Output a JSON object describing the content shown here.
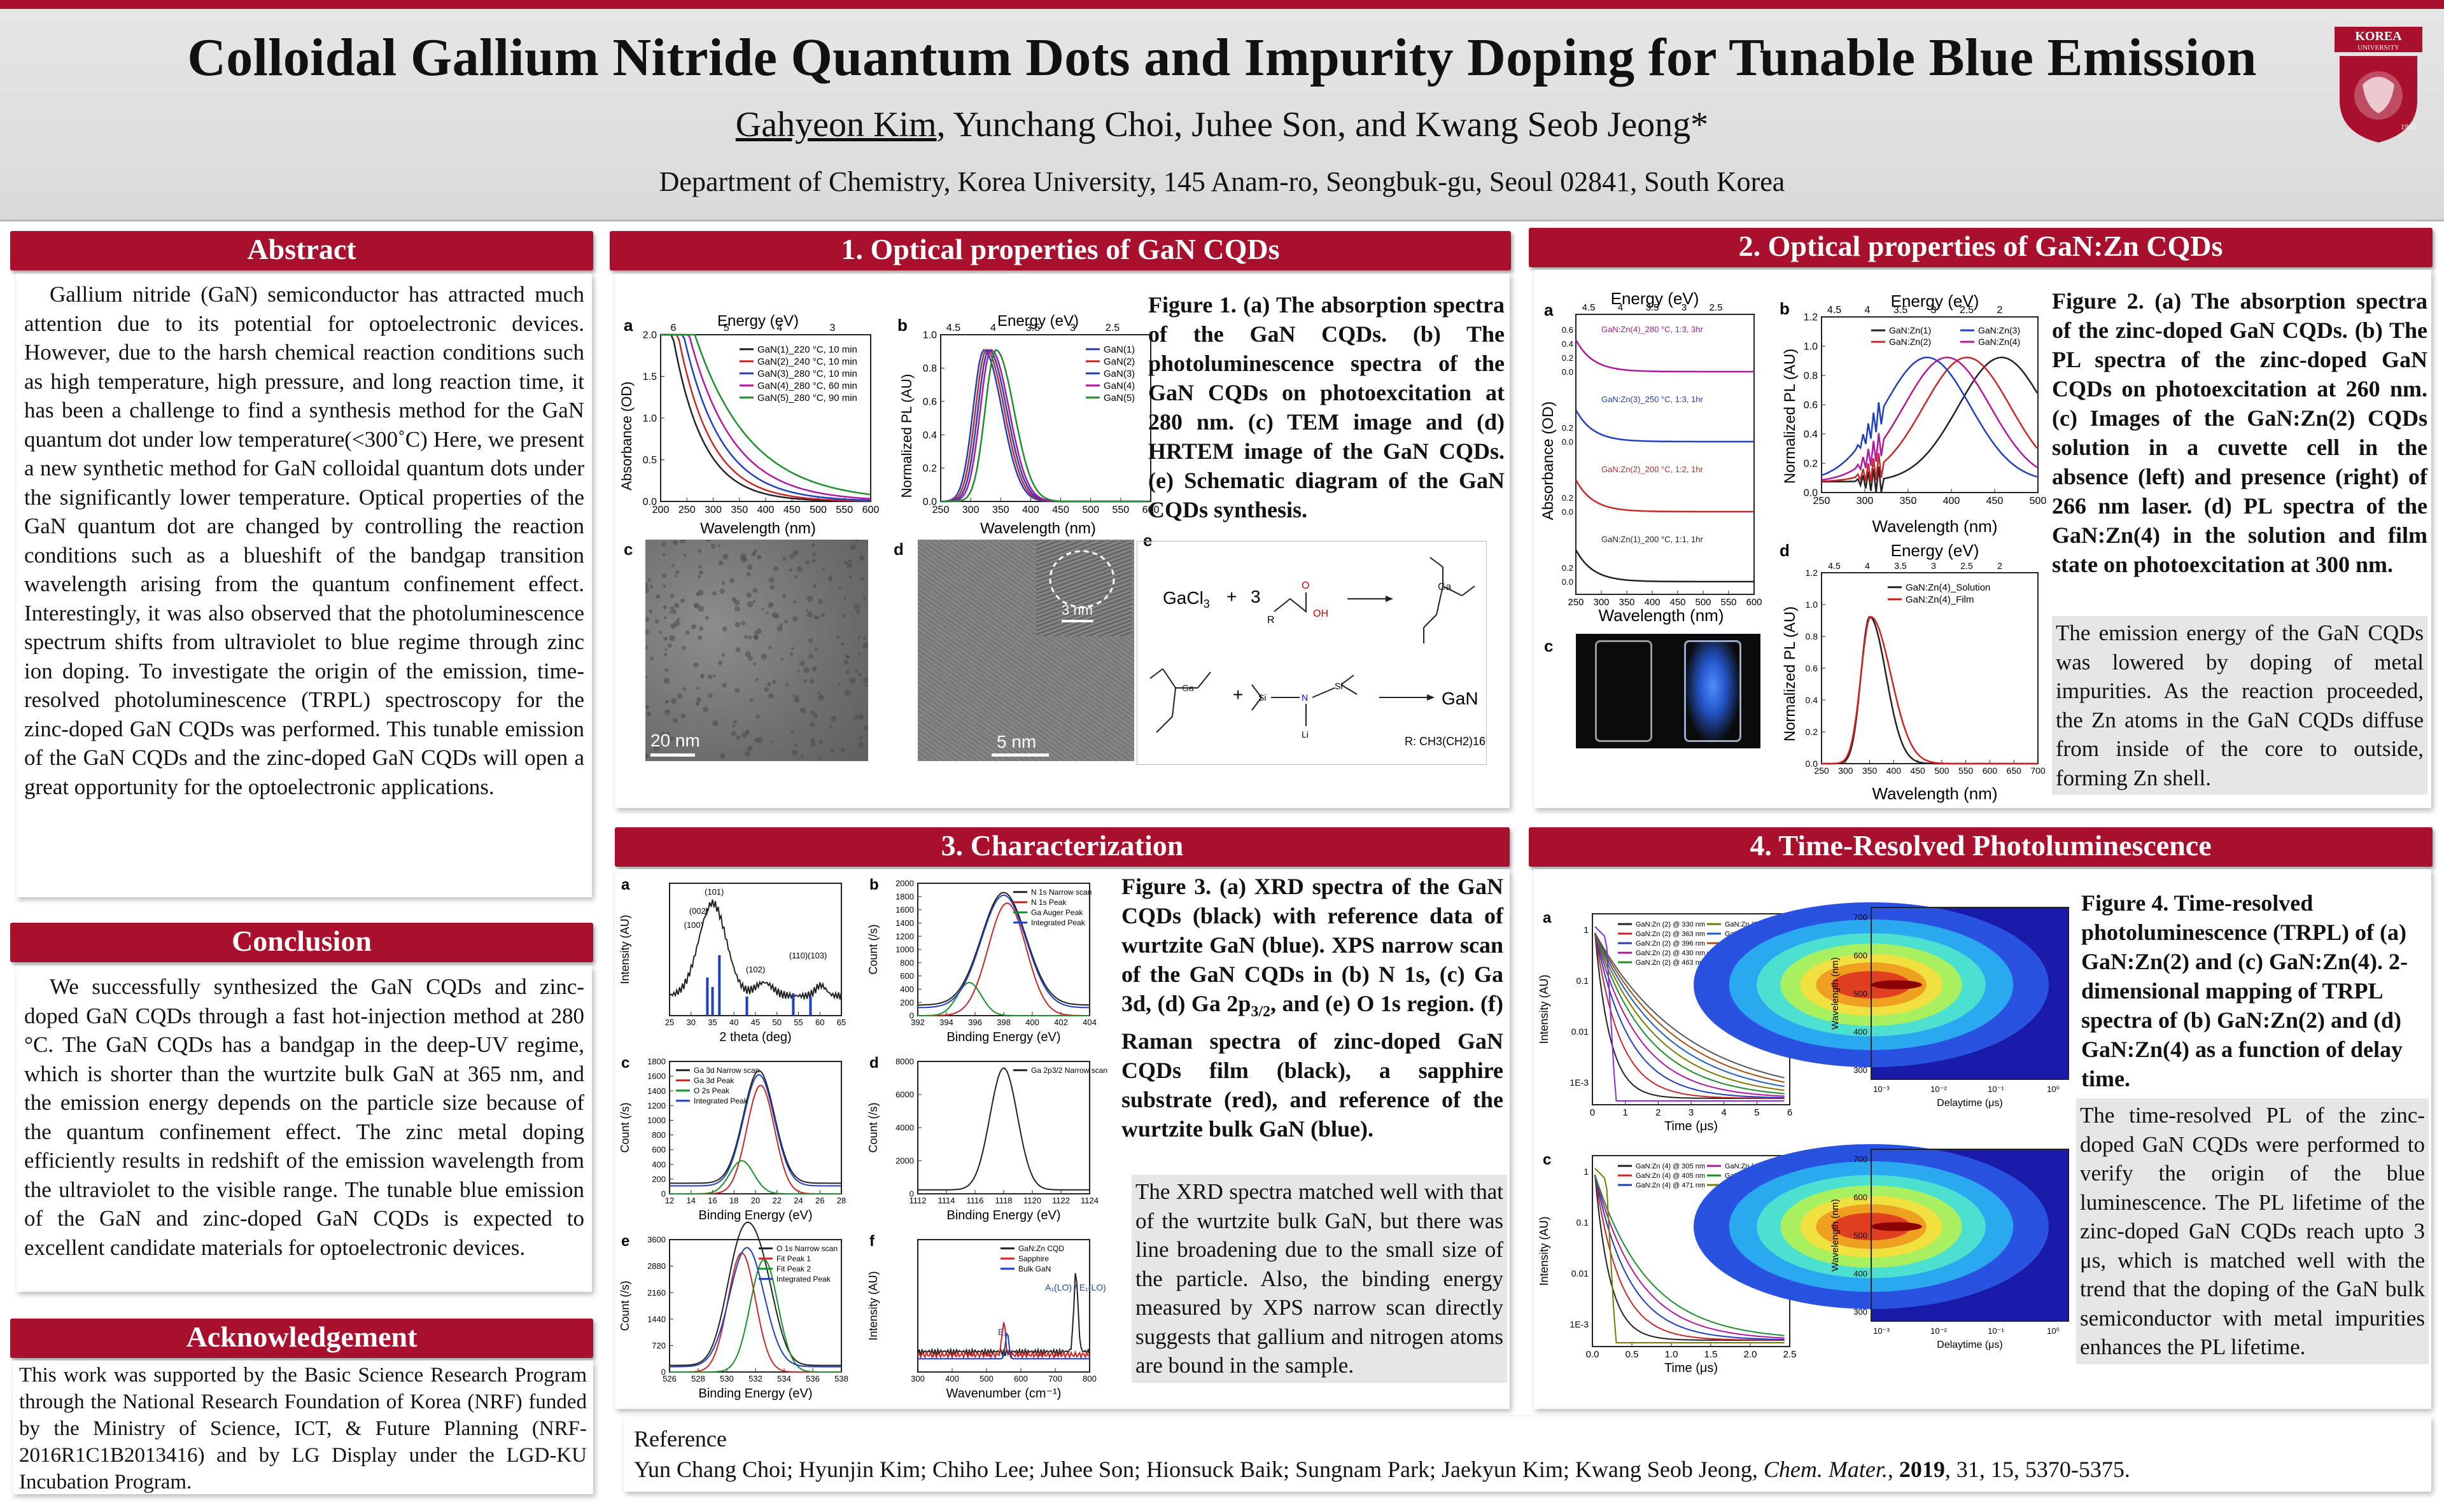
{
  "header": {
    "title": "Colloidal Gallium Nitride Quantum Dots and Impurity Doping for Tunable Blue Emission",
    "author_underlined": "Gahyeon Kim",
    "authors_rest": ", Yunchang Choi, Juhee Son, and Kwang Seob Jeong*",
    "affiliation": "Department of Chemistry, Korea University, 145 Anam-ro, Seongbuk-gu, Seoul 02841, South Korea",
    "logo_text_1": "KOREA",
    "logo_text_2": "UNIVERSITY",
    "logo_year": "1905"
  },
  "abstract": {
    "heading": "Abstract",
    "text": "Gallium nitride (GaN) semiconductor has attracted much attention due to its potential for optoelectronic devices. However, due to the harsh chemical reaction conditions such as high temperature, high pressure, and long reaction time, it has been a challenge to find a synthesis method for the GaN quantum dot under low temperature(<300˚C) Here, we present a new synthetic method for GaN colloidal quantum dots under the significantly lower temperature. Optical properties of the GaN quantum dot are changed by controlling the reaction conditions such as a blueshift of the bandgap transition wavelength arising from the quantum confinement effect. Interestingly, it was also observed that the photoluminescence spectrum shifts from ultraviolet to blue regime through zinc ion doping. To investigate the origin of the emission, time-resolved photoluminescence (TRPL) spectroscopy for the zinc-doped GaN CQDs was performed. This tunable emission of the GaN CQDs and the zinc-doped GaN CQDs will open a great opportunity for the optoelectronic applications."
  },
  "conclusion": {
    "heading": "Conclusion",
    "text": "We successfully synthesized the GaN CQDs and zinc-doped GaN CQDs through a fast hot-injection method at 280 °C. The GaN CQDs has a bandgap in the deep-UV regime, which is shorter than the wurtzite bulk GaN at 365 nm, and the emission energy depends on the particle size because of the quantum confinement effect. The zinc metal doping efficiently results in redshift of the emission wavelength from the ultraviolet to the visible range. The tunable blue emission of the GaN and zinc-doped GaN CQDs is expected to excellent candidate materials for optoelectronic devices."
  },
  "acknowledgement": {
    "heading": "Acknowledgement",
    "text": "This work was supported by the Basic Science Research Program through the National Research Foundation of Korea (NRF) funded by the Ministry of Science, ICT, & Future Planning (NRF-2016R1C1B2013416) and by LG Display under the LGD-KU Incubation Program."
  },
  "section1": {
    "heading": "1. Optical properties of GaN CQDs",
    "caption": "Figure 1. (a) The absorption spectra of the GaN CQDs. (b) The photoluminescence spectra of the GaN CQDs on photoexcitation at 280 nm. (c) TEM image and (d) HRTEM image of the GaN CQDs. (e) Schematic diagram of the GaN CQDs synthesis.",
    "panel_a": {
      "label": "a",
      "top_axis": "Energy (eV)",
      "xlabel": "Wavelength (nm)",
      "ylabel": "Absorbance (OD)",
      "legend": [
        "GaN(1)_220 °C, 10 min",
        "GaN(2)_240 °C, 10 min",
        "GaN(3)_280 °C, 10 min",
        "GaN(4)_280 °C, 60 min",
        "GaN(5)_280 °C, 90 min"
      ],
      "xticks": [
        "200",
        "250",
        "300",
        "350",
        "400",
        "450",
        "500",
        "550",
        "600"
      ],
      "yticks": [
        "0.0",
        "0.5",
        "1.0",
        "1.5",
        "2.0"
      ],
      "top_ticks": [
        "6",
        "5",
        "4",
        "3"
      ]
    },
    "panel_b": {
      "label": "b",
      "top_axis": "Energy (eV)",
      "xlabel": "Wavelength (nm)",
      "ylabel": "Normalized PL (AU)",
      "legend": [
        "GaN(1)",
        "GaN(2)",
        "GaN(3)",
        "GaN(4)",
        "GaN(5)"
      ],
      "xticks": [
        "250",
        "300",
        "350",
        "400",
        "450",
        "500",
        "550",
        "600"
      ],
      "yticks": [
        "0.0",
        "0.2",
        "0.4",
        "0.6",
        "0.8",
        "1.0"
      ],
      "top_ticks": [
        "4.5",
        "4",
        "3.5",
        "3",
        "2.5"
      ]
    },
    "panel_c": {
      "label": "c",
      "scale": "20 nm"
    },
    "panel_d": {
      "label": "d",
      "scale": "5 nm",
      "inset_scale": "3 nm"
    },
    "panel_e": {
      "label": "e",
      "reagent1": "GaCl",
      "reagent1_sub": "3",
      "plus": "+",
      "coef": "3",
      "product": "GaN",
      "r_group": "R: CH3(CH2)16",
      "chain_label_1": "R",
      "si_label": "Si",
      "li_label": "Li"
    }
  },
  "section2": {
    "heading": "2. Optical properties of GaN:Zn CQDs",
    "caption": "Figure 2. (a) The absorption spectra of the zinc-doped GaN CQDs. (b) The PL spectra of the zinc-doped GaN CQDs on photoexcitation at 260 nm. (c) Images of the GaN:Zn(2) CQDs solution in a cuvette cell in the absence (left) and presence (right) of 266 nm laser. (d) PL spectra of the GaN:Zn(4) in the solution and film state on photoexcitation at 300 nm.",
    "note": "The emission energy of the GaN CQDs was lowered by doping of metal impurities. As the reaction proceeded, the Zn atoms in the GaN CQDs diffuse from inside of the core to outside, forming Zn shell.",
    "panel_a": {
      "label": "a",
      "top_axis": "Energy (eV)",
      "xlabel": "Wavelength (nm)",
      "ylabel": "Absorbance (OD)",
      "traces": [
        "GaN:Zn(4)_280 °C, 1:3, 3hr",
        "GaN:Zn(3)_250 °C, 1:3, 1hr",
        "GaN:Zn(2)_200 °C, 1:2, 1hr",
        "GaN:Zn(1)_200 °C, 1:1, 1hr"
      ],
      "xticks": [
        "250",
        "300",
        "350",
        "400",
        "450",
        "500",
        "550",
        "600"
      ],
      "top_ticks": [
        "4.5",
        "4",
        "3.5",
        "3",
        "2.5"
      ]
    },
    "panel_b": {
      "label": "b",
      "top_axis": "Energy (eV)",
      "xlabel": "Wavelength (nm)",
      "ylabel": "Normalized PL (AU)",
      "legend": [
        "GaN:Zn(1)",
        "GaN:Zn(2)",
        "GaN:Zn(3)",
        "GaN:Zn(4)"
      ],
      "xticks": [
        "250",
        "300",
        "350",
        "400",
        "450",
        "500"
      ],
      "yticks": [
        "0.0",
        "0.2",
        "0.4",
        "0.6",
        "0.8",
        "1.0",
        "1.2"
      ],
      "top_ticks": [
        "4.5",
        "4",
        "3.5",
        "3",
        "2.5",
        "2"
      ]
    },
    "panel_c": {
      "label": "c"
    },
    "panel_d": {
      "label": "d",
      "top_axis": "Energy (eV)",
      "xlabel": "Wavelength (nm)",
      "ylabel": "Normalized PL (AU)",
      "legend": [
        "GaN:Zn(4)_Solution",
        "GaN:Zn(4)_Film"
      ],
      "xticks": [
        "250",
        "300",
        "350",
        "400",
        "450",
        "500",
        "550",
        "600",
        "650",
        "700"
      ],
      "yticks": [
        "0.0",
        "0.2",
        "0.4",
        "0.6",
        "0.8",
        "1.0",
        "1.2"
      ],
      "top_ticks": [
        "4.5",
        "4",
        "3.5",
        "3",
        "2.5",
        "2"
      ]
    }
  },
  "section3": {
    "heading": "3. Characterization",
    "caption_parts": [
      "Figure 3. (a) XRD spectra of the GaN CQDs (black) with reference data of wurtzite GaN (blue). XPS narrow scan of the GaN CQDs in (b) N 1s, (c) Ga 3d, (d) Ga 2p",
      "3/2",
      ", and (e) O 1s region. (f) Raman spectra of zinc-doped GaN CQDs film (black), a sapphire substrate (red), and reference of the wurtzite bulk GaN (blue)."
    ],
    "note": "The XRD spectra matched well with that of the wurtzite bulk GaN, but there was line broadening due to the small size of the particle. Also, the binding energy measured by XPS narrow scan directly suggests that gallium and nitrogen atoms are bound in the sample.",
    "panel_a": {
      "label": "a",
      "xlabel": "2 theta (deg)",
      "ylabel": "Intensity (AU)",
      "peaks": [
        "(101)",
        "(002)",
        "(100)",
        "(102)",
        "(110)",
        "(103)"
      ],
      "xticks": [
        "25",
        "30",
        "35",
        "40",
        "45",
        "50",
        "55",
        "60",
        "65"
      ]
    },
    "panel_b": {
      "label": "b",
      "xlabel": "Binding Energy (eV)",
      "ylabel": "Count (/s)",
      "legend": [
        "N 1s Narrow scan",
        "N 1s Peak",
        "Ga Auger Peak",
        "Integrated Peak"
      ],
      "xticks": [
        "392",
        "394",
        "396",
        "398",
        "400",
        "402",
        "404"
      ],
      "yticks": [
        "0",
        "200",
        "400",
        "600",
        "800",
        "1000",
        "1200",
        "1400",
        "1600",
        "1800",
        "2000"
      ]
    },
    "panel_c": {
      "label": "c",
      "xlabel": "Binding Energy (eV)",
      "ylabel": "Count (/s)",
      "legend": [
        "Ga 3d Narrow scan",
        "Ga 3d Peak",
        "O 2s Peak",
        "Integrated Peak"
      ],
      "xticks": [
        "12",
        "14",
        "16",
        "18",
        "20",
        "22",
        "24",
        "26",
        "28"
      ],
      "yticks": [
        "0",
        "200",
        "400",
        "600",
        "800",
        "1000",
        "1200",
        "1400",
        "1600",
        "1800"
      ]
    },
    "panel_d": {
      "label": "d",
      "xlabel": "Binding Energy (eV)",
      "ylabel": "Count (/s)",
      "legend": [
        "Ga 2p3/2 Narrow scan"
      ],
      "xticks": [
        "1112",
        "1114",
        "1116",
        "1118",
        "1120",
        "1122",
        "1124"
      ],
      "yticks": [
        "0",
        "2000",
        "4000",
        "6000",
        "8000"
      ]
    },
    "panel_e": {
      "label": "e",
      "xlabel": "Binding Energy (eV)",
      "ylabel": "Count (/s)",
      "legend": [
        "O 1s Narrow scan",
        "Fit Peak 1",
        "Fit Peak 2",
        "Integrated Peak"
      ],
      "xticks": [
        "526",
        "528",
        "530",
        "532",
        "534",
        "536",
        "538"
      ],
      "yticks": [
        "0",
        "720",
        "1440",
        "2160",
        "2880",
        "3600"
      ]
    },
    "panel_f": {
      "label": "f",
      "xlabel": "Wavenumber (cm⁻¹)",
      "ylabel": "Intensity (AU)",
      "legend": [
        "GaN:Zn CQD",
        "Sapphire",
        "Bulk GaN"
      ],
      "annot1": "A₁(LO) / E₁(LO)",
      "annot2": "E₂",
      "xticks": [
        "300",
        "400",
        "500",
        "600",
        "700",
        "800"
      ]
    }
  },
  "section4": {
    "heading": "4. Time-Resolved Photoluminescence",
    "caption": "Figure 4. Time-resolved photoluminescence (TRPL) of (a) GaN:Zn(2) and (c) GaN:Zn(4). 2-dimensional mapping of TRPL spectra of (b) GaN:Zn(2) and (d) GaN:Zn(4) as a function of delay time.",
    "note": "The time-resolved PL of the zinc-doped GaN CQDs were performed to verify the origin of the blue luminescence. The PL lifetime of the zinc-doped GaN CQDs reach upto 3 μs, which is matched well with the trend that the doping of the GaN bulk semiconductor with metal impurities enhances the PL lifetime.",
    "panel_a": {
      "label": "a",
      "xlabel": "Time (μs)",
      "ylabel": "Intensity (AU)",
      "legend": [
        "GaN:Zn (2) @ 330 nm",
        "GaN:Zn (2) @ 363 nm",
        "GaN:Zn (2) @ 396 nm",
        "GaN:Zn (2) @ 430 nm",
        "GaN:Zn (2) @ 463 nm",
        "GaN:Zn (2) @ 496 nm",
        "GaN:Zn (2) @ 563 nm",
        "GaN:Zn (2) @ 597 nm",
        "GaN:Zn (2) @ 630 nm",
        "IRF"
      ],
      "xticks": [
        "0",
        "1",
        "2",
        "3",
        "4",
        "5",
        "6"
      ],
      "yticks": [
        "1",
        "0.1",
        "0.01",
        "1E-3"
      ]
    },
    "panel_b": {
      "label": "b",
      "xlabel": "Delaytime (μs)",
      "ylabel": "Wavelength (nm)",
      "xticks": [
        "10⁻³",
        "10⁻²",
        "10⁻¹",
        "10⁰"
      ],
      "yticks": [
        "700",
        "600",
        "500",
        "400",
        "300"
      ]
    },
    "panel_c": {
      "label": "c",
      "xlabel": "Time (μs)",
      "ylabel": "Intensity (AU)",
      "legend": [
        "GaN:Zn (4) @ 305 nm",
        "GaN:Zn (4) @ 405 nm",
        "GaN:Zn (4) @ 471 nm",
        "GaN:Zn (4) @ 513 nm",
        "GaN:Zn (4) @ 605 nm",
        "IRF"
      ],
      "xticks": [
        "0.0",
        "0.5",
        "1.0",
        "1.5",
        "2.0",
        "2.5"
      ],
      "yticks": [
        "1",
        "0.1",
        "0.01",
        "1E-3"
      ]
    },
    "panel_d": {
      "label": "d",
      "xlabel": "Delaytime (μs)",
      "ylabel": "Wavelength (nm)",
      "xticks": [
        "10⁻³",
        "10⁻²",
        "10⁻¹",
        "10⁰"
      ],
      "yticks": [
        "700",
        "600",
        "500",
        "400",
        "300"
      ]
    }
  },
  "reference": {
    "heading": "Reference",
    "authors": "Yun Chang Choi; Hyunjin Kim; Chiho Lee; Juhee Son; Hionsuck Baik; Sungnam Park; Jaekyun Kim; Kwang Seob Jeong, ",
    "journal": "Chem. Mater.",
    "comma": ", ",
    "year": "2019",
    "rest": ", 31, 15, 5370-5375."
  },
  "colors": {
    "accent": "#a8102e",
    "note_bg": "#e6e6e6",
    "header_bg": "#dcdcdc"
  },
  "chart_data": [
    {
      "type": "line",
      "panel": "1a",
      "x": [
        200,
        250,
        300,
        350,
        400,
        450,
        500,
        550,
        600
      ],
      "series": [
        {
          "name": "GaN(1)_220 °C, 10 min",
          "values": [
            2.0,
            1.2,
            0.45,
            0.15,
            0.05,
            0.02,
            0.01,
            0.0,
            0.0
          ]
        },
        {
          "name": "GaN(2)_240 °C, 10 min",
          "values": [
            2.0,
            1.4,
            0.6,
            0.2,
            0.07,
            0.03,
            0.01,
            0.0,
            0.0
          ]
        },
        {
          "name": "GaN(3)_280 °C, 10 min",
          "values": [
            2.0,
            1.6,
            0.8,
            0.3,
            0.1,
            0.04,
            0.02,
            0.01,
            0.0
          ]
        },
        {
          "name": "GaN(4)_280 °C, 60 min",
          "values": [
            2.0,
            1.9,
            1.1,
            0.5,
            0.2,
            0.08,
            0.03,
            0.01,
            0.0
          ]
        },
        {
          "name": "GaN(5)_280 °C, 90 min",
          "values": [
            2.0,
            2.0,
            1.5,
            0.8,
            0.4,
            0.15,
            0.06,
            0.02,
            0.01
          ]
        }
      ],
      "xlabel": "Wavelength (nm)",
      "ylabel": "Absorbance (OD)",
      "ylim": [
        0,
        2.0
      ]
    },
    {
      "type": "line",
      "panel": "1b",
      "x": [
        250,
        275,
        300,
        325,
        350,
        375,
        400,
        450,
        500,
        550,
        600
      ],
      "series": [
        {
          "name": "GaN(1)",
          "values": [
            0.0,
            0.05,
            0.6,
            1.0,
            0.8,
            0.4,
            0.15,
            0.03,
            0.0,
            0.0,
            0.0
          ]
        },
        {
          "name": "GaN(2)",
          "values": [
            0.0,
            0.04,
            0.55,
            1.0,
            0.85,
            0.45,
            0.18,
            0.04,
            0.0,
            0.0,
            0.0
          ]
        },
        {
          "name": "GaN(3)",
          "values": [
            0.0,
            0.03,
            0.5,
            0.98,
            0.88,
            0.5,
            0.2,
            0.04,
            0.0,
            0.0,
            0.0
          ]
        },
        {
          "name": "GaN(4)",
          "values": [
            0.0,
            0.03,
            0.45,
            0.95,
            0.95,
            0.55,
            0.22,
            0.05,
            0.01,
            0.0,
            0.0
          ]
        },
        {
          "name": "GaN(5)",
          "values": [
            0.0,
            0.02,
            0.35,
            0.85,
            1.0,
            0.65,
            0.3,
            0.07,
            0.01,
            0.0,
            0.0
          ]
        }
      ],
      "xlabel": "Wavelength (nm)",
      "ylabel": "Normalized PL (AU)",
      "ylim": [
        0,
        1.1
      ]
    },
    {
      "type": "line",
      "panel": "2b",
      "x": [
        250,
        300,
        350,
        400,
        450,
        500
      ],
      "series": [
        {
          "name": "GaN:Zn(1)",
          "values": [
            0.0,
            0.2,
            0.4,
            0.75,
            1.0,
            0.7
          ]
        },
        {
          "name": "GaN:Zn(2)",
          "values": [
            0.0,
            0.3,
            0.7,
            1.0,
            0.65,
            0.25
          ]
        },
        {
          "name": "GaN:Zn(3)",
          "values": [
            0.0,
            0.5,
            1.0,
            0.7,
            0.3,
            0.08
          ]
        },
        {
          "name": "GaN:Zn(4)",
          "values": [
            0.0,
            0.4,
            0.85,
            1.0,
            0.55,
            0.2
          ]
        }
      ],
      "xlabel": "Wavelength (nm)",
      "ylabel": "Normalized PL (AU)",
      "ylim": [
        0,
        1.3
      ]
    },
    {
      "type": "line",
      "panel": "2d",
      "x": [
        250,
        300,
        325,
        350,
        375,
        400,
        450,
        500,
        600,
        700
      ],
      "series": [
        {
          "name": "GaN:Zn(4)_Solution",
          "values": [
            0.0,
            0.1,
            0.6,
            1.0,
            0.7,
            0.35,
            0.1,
            0.03,
            0.0,
            0.0
          ]
        },
        {
          "name": "GaN:Zn(4)_Film",
          "values": [
            0.0,
            0.12,
            0.65,
            1.0,
            0.8,
            0.45,
            0.15,
            0.05,
            0.01,
            0.0
          ]
        }
      ],
      "xlabel": "Wavelength (nm)",
      "ylabel": "Normalized PL (AU)",
      "ylim": [
        0,
        1.3
      ]
    },
    {
      "type": "line",
      "panel": "3d",
      "x": [
        1112,
        1114,
        1116,
        1117,
        1118,
        1119,
        1120,
        1122,
        1124
      ],
      "series": [
        {
          "name": "Ga 2p3/2 Narrow scan",
          "values": [
            100,
            300,
            2500,
            6000,
            8000,
            5500,
            1500,
            300,
            150
          ]
        }
      ],
      "xlabel": "Binding Energy (eV)",
      "ylabel": "Count (/s)",
      "ylim": [
        0,
        8500
      ]
    }
  ]
}
